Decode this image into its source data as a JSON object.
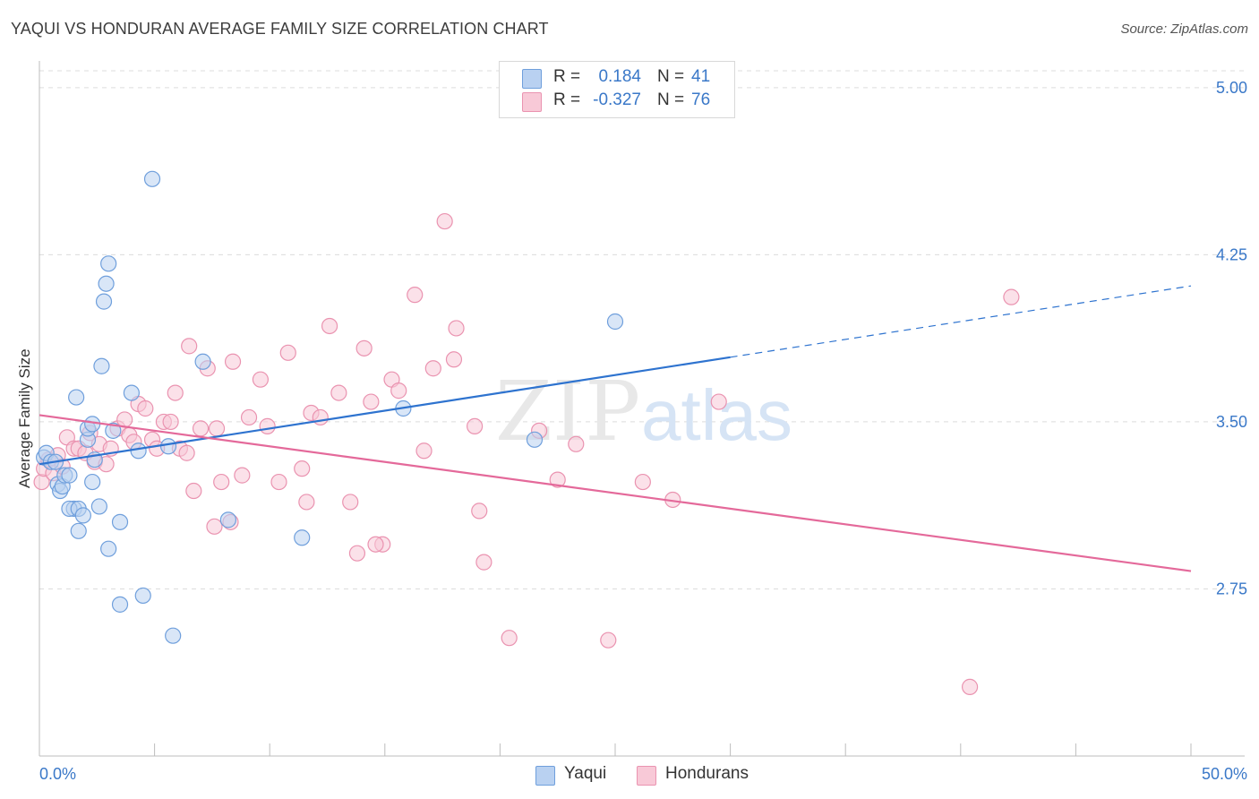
{
  "title": "YAQUI VS HONDURAN AVERAGE FAMILY SIZE CORRELATION CHART",
  "source": "Source: ZipAtlas.com",
  "watermark": {
    "zip": "ZIP",
    "atlas": "atlas"
  },
  "legend": {
    "r_label": "R =",
    "n_label": "N =",
    "items": [
      {
        "name": "Yaqui",
        "r": "0.184",
        "n": "41",
        "fill": "#b9d1f1",
        "stroke": "#6f9fdc"
      },
      {
        "name": "Hondurans",
        "r": "-0.327",
        "n": "76",
        "fill": "#f8c9d7",
        "stroke": "#ea93b0"
      }
    ]
  },
  "colors": {
    "blue_line": "#2e73cf",
    "pink_line": "#e4699a",
    "tick_label": "#3a78c8",
    "grid": "#dcdcdc"
  },
  "chart_data": {
    "type": "scatter",
    "xlabel": "",
    "ylabel": "Average Family Size",
    "xlim": [
      0,
      50
    ],
    "ylim": [
      2.0,
      5.12
    ],
    "x_tick_labels": [
      "0.0%",
      "50.0%"
    ],
    "y_ticks": [
      2.75,
      3.5,
      4.25,
      5.0
    ],
    "y_tick_labels": [
      "2.75",
      "3.50",
      "4.25",
      "5.00"
    ],
    "grid": "horizontal dashed",
    "legend_position": "top-center",
    "series": [
      {
        "name": "Yaqui",
        "r": 0.184,
        "n": 41,
        "trend": {
          "x0": 0,
          "y0": 3.31,
          "x1": 30,
          "y1": 3.79,
          "dashed_to_x": 50,
          "dashed_to_y": 4.11
        },
        "points": [
          {
            "x": 0.2,
            "y": 3.34
          },
          {
            "x": 0.3,
            "y": 3.36
          },
          {
            "x": 0.5,
            "y": 3.32
          },
          {
            "x": 0.7,
            "y": 3.32
          },
          {
            "x": 0.8,
            "y": 3.22
          },
          {
            "x": 0.9,
            "y": 3.19
          },
          {
            "x": 1.0,
            "y": 3.21
          },
          {
            "x": 1.1,
            "y": 3.26
          },
          {
            "x": 1.3,
            "y": 3.26
          },
          {
            "x": 1.5,
            "y": 3.11
          },
          {
            "x": 1.3,
            "y": 3.11
          },
          {
            "x": 1.6,
            "y": 3.61
          },
          {
            "x": 1.7,
            "y": 3.11
          },
          {
            "x": 1.7,
            "y": 3.01
          },
          {
            "x": 1.9,
            "y": 3.08
          },
          {
            "x": 2.1,
            "y": 3.42
          },
          {
            "x": 2.1,
            "y": 3.47
          },
          {
            "x": 2.3,
            "y": 3.49
          },
          {
            "x": 2.3,
            "y": 3.23
          },
          {
            "x": 2.4,
            "y": 3.33
          },
          {
            "x": 2.6,
            "y": 3.12
          },
          {
            "x": 2.7,
            "y": 3.75
          },
          {
            "x": 2.8,
            "y": 4.04
          },
          {
            "x": 2.9,
            "y": 4.12
          },
          {
            "x": 3.0,
            "y": 4.21
          },
          {
            "x": 3.0,
            "y": 2.93
          },
          {
            "x": 3.2,
            "y": 3.46
          },
          {
            "x": 3.5,
            "y": 3.05
          },
          {
            "x": 3.5,
            "y": 2.68
          },
          {
            "x": 4.0,
            "y": 3.63
          },
          {
            "x": 4.3,
            "y": 3.37
          },
          {
            "x": 4.5,
            "y": 2.72
          },
          {
            "x": 4.9,
            "y": 4.59
          },
          {
            "x": 5.6,
            "y": 3.39
          },
          {
            "x": 5.8,
            "y": 2.54
          },
          {
            "x": 7.1,
            "y": 3.77
          },
          {
            "x": 8.2,
            "y": 3.06
          },
          {
            "x": 11.4,
            "y": 2.98
          },
          {
            "x": 15.8,
            "y": 3.56
          },
          {
            "x": 21.5,
            "y": 3.42
          },
          {
            "x": 25.0,
            "y": 3.95
          }
        ]
      },
      {
        "name": "Hondurans",
        "r": -0.327,
        "n": 76,
        "trend": {
          "x0": 0,
          "y0": 3.53,
          "x1": 50,
          "y1": 2.83
        },
        "points": [
          {
            "x": 0.1,
            "y": 3.23
          },
          {
            "x": 0.2,
            "y": 3.29
          },
          {
            "x": 0.4,
            "y": 3.33
          },
          {
            "x": 0.6,
            "y": 3.27
          },
          {
            "x": 0.8,
            "y": 3.35
          },
          {
            "x": 1.0,
            "y": 3.3
          },
          {
            "x": 1.2,
            "y": 3.43
          },
          {
            "x": 1.5,
            "y": 3.38
          },
          {
            "x": 1.7,
            "y": 3.38
          },
          {
            "x": 2.0,
            "y": 3.36
          },
          {
            "x": 2.2,
            "y": 3.45
          },
          {
            "x": 2.4,
            "y": 3.32
          },
          {
            "x": 2.6,
            "y": 3.4
          },
          {
            "x": 2.9,
            "y": 3.31
          },
          {
            "x": 3.1,
            "y": 3.38
          },
          {
            "x": 3.4,
            "y": 3.47
          },
          {
            "x": 3.7,
            "y": 3.51
          },
          {
            "x": 3.9,
            "y": 3.44
          },
          {
            "x": 4.1,
            "y": 3.41
          },
          {
            "x": 4.3,
            "y": 3.58
          },
          {
            "x": 4.6,
            "y": 3.56
          },
          {
            "x": 4.9,
            "y": 3.42
          },
          {
            "x": 5.1,
            "y": 3.38
          },
          {
            "x": 5.4,
            "y": 3.5
          },
          {
            "x": 5.7,
            "y": 3.5
          },
          {
            "x": 5.9,
            "y": 3.63
          },
          {
            "x": 6.1,
            "y": 3.38
          },
          {
            "x": 6.4,
            "y": 3.36
          },
          {
            "x": 6.5,
            "y": 3.84
          },
          {
            "x": 6.7,
            "y": 3.19
          },
          {
            "x": 7.0,
            "y": 3.47
          },
          {
            "x": 7.3,
            "y": 3.74
          },
          {
            "x": 7.6,
            "y": 3.03
          },
          {
            "x": 7.7,
            "y": 3.47
          },
          {
            "x": 7.9,
            "y": 3.23
          },
          {
            "x": 8.3,
            "y": 3.05
          },
          {
            "x": 8.4,
            "y": 3.77
          },
          {
            "x": 8.8,
            "y": 3.26
          },
          {
            "x": 9.1,
            "y": 3.52
          },
          {
            "x": 9.6,
            "y": 3.69
          },
          {
            "x": 9.9,
            "y": 3.48
          },
          {
            "x": 10.4,
            "y": 3.23
          },
          {
            "x": 10.8,
            "y": 3.81
          },
          {
            "x": 11.6,
            "y": 3.14
          },
          {
            "x": 11.8,
            "y": 3.54
          },
          {
            "x": 12.2,
            "y": 3.52
          },
          {
            "x": 11.4,
            "y": 3.29
          },
          {
            "x": 12.6,
            "y": 3.93
          },
          {
            "x": 13.0,
            "y": 3.63
          },
          {
            "x": 13.5,
            "y": 3.14
          },
          {
            "x": 14.1,
            "y": 3.83
          },
          {
            "x": 14.4,
            "y": 3.59
          },
          {
            "x": 13.8,
            "y": 2.91
          },
          {
            "x": 14.9,
            "y": 2.95
          },
          {
            "x": 15.3,
            "y": 3.69
          },
          {
            "x": 15.6,
            "y": 3.64
          },
          {
            "x": 14.6,
            "y": 2.95
          },
          {
            "x": 16.3,
            "y": 4.07
          },
          {
            "x": 16.7,
            "y": 3.37
          },
          {
            "x": 17.1,
            "y": 3.74
          },
          {
            "x": 17.6,
            "y": 4.4
          },
          {
            "x": 18.0,
            "y": 3.78
          },
          {
            "x": 18.1,
            "y": 3.92
          },
          {
            "x": 18.9,
            "y": 3.48
          },
          {
            "x": 19.1,
            "y": 3.1
          },
          {
            "x": 19.3,
            "y": 2.87
          },
          {
            "x": 20.4,
            "y": 2.53
          },
          {
            "x": 21.7,
            "y": 3.46
          },
          {
            "x": 22.5,
            "y": 3.24
          },
          {
            "x": 23.3,
            "y": 3.4
          },
          {
            "x": 24.7,
            "y": 2.52
          },
          {
            "x": 26.2,
            "y": 3.23
          },
          {
            "x": 27.5,
            "y": 3.15
          },
          {
            "x": 29.5,
            "y": 3.59
          },
          {
            "x": 40.4,
            "y": 2.31
          },
          {
            "x": 42.2,
            "y": 4.06
          }
        ]
      }
    ]
  }
}
